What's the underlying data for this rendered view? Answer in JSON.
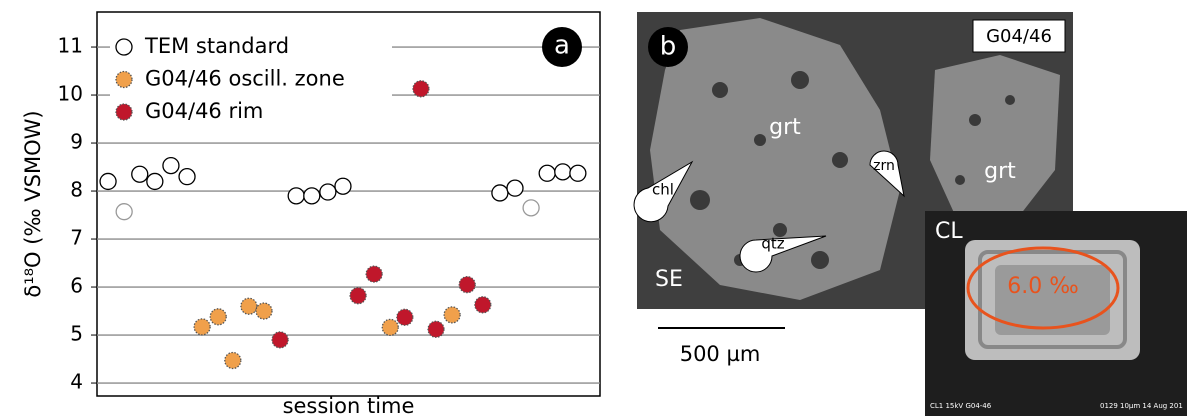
{
  "chart_data": {
    "type": "scatter",
    "ylabel": "δ¹⁸O (‰ VSMOW)",
    "xlabel": "session time",
    "panel_label": "a",
    "xlim": [
      0,
      100
    ],
    "ylim": [
      3.73,
      11.73
    ],
    "yticks": [
      4,
      5,
      6,
      7,
      8,
      9,
      10,
      11
    ],
    "grid": true,
    "legend": "upper left",
    "series": [
      {
        "name": "TEM standard",
        "color": "#ffffff",
        "edge_color": "#000000",
        "edge_colors": [
          "#000000",
          "#999999",
          "#000000",
          "#000000",
          "#000000",
          "#000000",
          "#000000",
          "#000000",
          "#000000",
          "#000000",
          "#000000",
          "#000000",
          "#999999",
          "#000000",
          "#000000",
          "#000000"
        ],
        "x": [
          2.2,
          5.4,
          8.5,
          11.5,
          14.7,
          17.9,
          39.6,
          42.7,
          45.9,
          48.9,
          80.1,
          83.1,
          86.3,
          89.5,
          92.6,
          95.6
        ],
        "values": [
          8.2,
          7.57,
          8.35,
          8.2,
          8.53,
          8.3,
          7.9,
          7.9,
          7.98,
          8.1,
          7.96,
          8.06,
          7.65,
          8.37,
          8.4,
          8.37
        ]
      },
      {
        "name": "G04/46 oscill. zone",
        "color": "#f0a04b",
        "edge_color": "#555555",
        "x": [
          20.9,
          24.1,
          27.0,
          30.2,
          33.2,
          58.3,
          70.6
        ],
        "values": [
          5.17,
          5.38,
          4.47,
          5.6,
          5.5,
          5.16,
          5.42
        ]
      },
      {
        "name": "G04/46 rim",
        "color": "#c0172b",
        "edge_color": "#555555",
        "x": [
          36.4,
          51.9,
          55.1,
          61.2,
          64.4,
          67.4,
          73.6,
          76.7
        ],
        "values": [
          4.9,
          5.82,
          6.27,
          5.37,
          10.13,
          5.12,
          6.05,
          5.63
        ]
      }
    ]
  },
  "images": {
    "panel_label": "b",
    "sample": "G04/46",
    "grt_left": "grt",
    "grt_right": "grt",
    "zrn": "zrn",
    "chl": "chl",
    "qtz": "qtz",
    "se": "SE",
    "scale_bar": "500 µm",
    "cl": "CL",
    "cl_value": "6.0 ‰",
    "cl_footer_left": "CL1 15kV G04-46",
    "cl_footer_mid": "0129",
    "cl_footer_right": "10µm 14 Aug 201"
  }
}
